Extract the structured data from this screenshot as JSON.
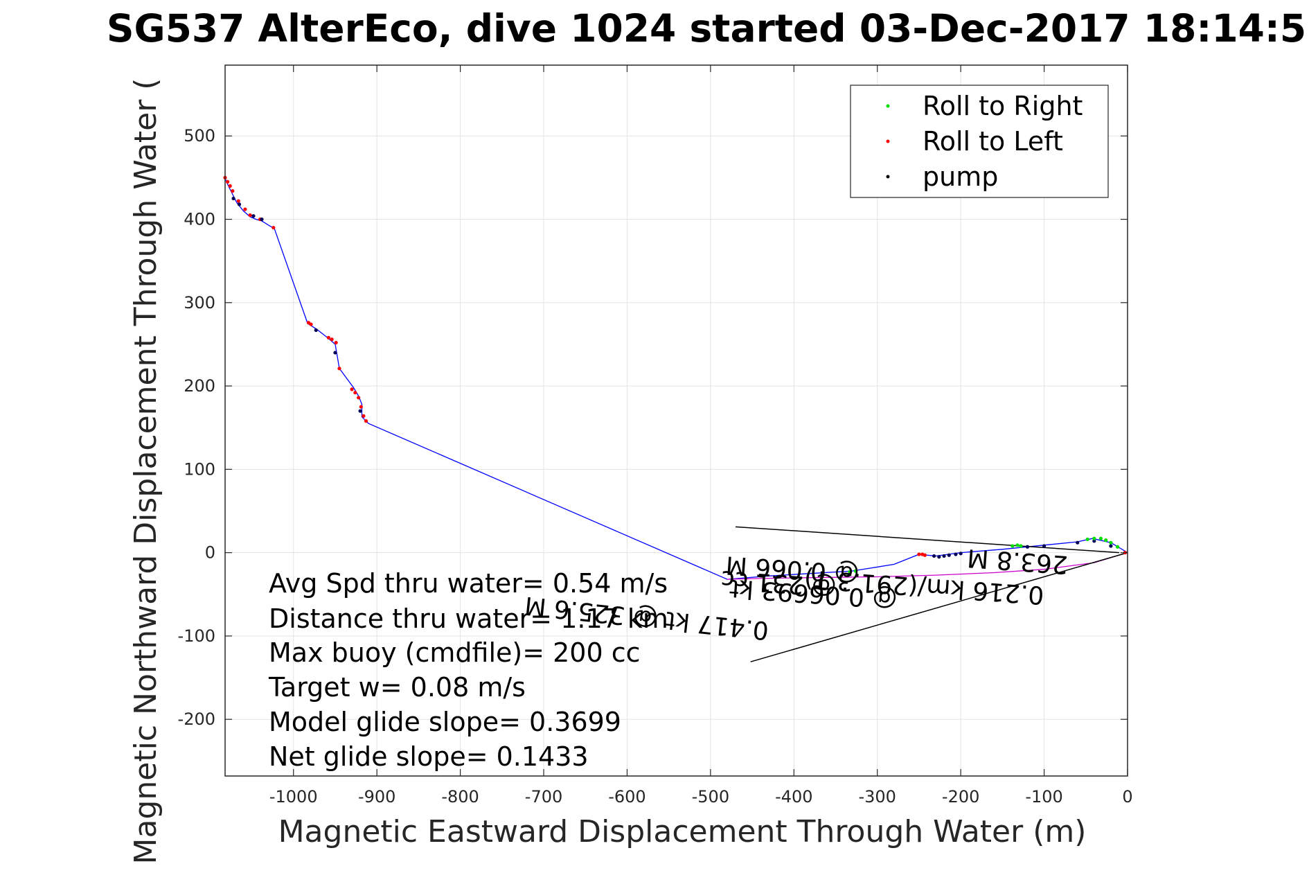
{
  "chart_data": {
    "type": "line",
    "title": "SG537 AlterEco, dive 1024 started 03-Dec-2017 18:14:5",
    "xlabel": "Magnetic Eastward Displacement Through Water (m)",
    "ylabel": "Magnetic Northward Displacement Through Water (",
    "xlim": [
      -1082,
      0
    ],
    "ylim": [
      -268,
      585
    ],
    "grid": true,
    "legend_position": "top-right",
    "xticks": [
      -1000,
      -900,
      -800,
      -700,
      -600,
      -500,
      -400,
      -300,
      -200,
      -100,
      0
    ],
    "yticks": [
      -200,
      -100,
      0,
      100,
      200,
      300,
      400,
      500
    ],
    "tick_labels_x": [
      "-1000",
      "-900",
      "-800",
      "-700",
      "-600",
      "-500",
      "-400",
      "-300",
      "-200",
      "-100",
      "0"
    ],
    "tick_labels_y": [
      "-200",
      "-100",
      "0",
      "100",
      "200",
      "300",
      "400",
      "500"
    ],
    "legend": [
      {
        "label": "Roll to Right",
        "color": "#00dd00"
      },
      {
        "label": "Roll to Left",
        "color": "#ff0000"
      },
      {
        "label": "pump",
        "color": "#000000"
      }
    ],
    "series": [
      {
        "color": "#0000ff",
        "x": [
          -1082,
          -1078,
          -1074,
          -1068,
          -1060,
          -1052,
          -1045,
          -1038,
          -1030,
          -1023,
          -983,
          -972,
          -958,
          -950,
          -945,
          -928,
          -922,
          -918,
          -918,
          -915,
          -910,
          -480,
          -430,
          -380,
          -330,
          -280,
          -250,
          -230,
          -200,
          -150,
          -100,
          -60,
          -42,
          -20,
          0
        ],
        "y": [
          449,
          440,
          432,
          420,
          410,
          403,
          400,
          398,
          393,
          389,
          275,
          268,
          257,
          250,
          221,
          198,
          188,
          178,
          163,
          160,
          155,
          -32,
          -28,
          -25,
          -22,
          -14,
          -2,
          -4,
          0,
          4,
          9,
          13,
          17,
          12,
          0
        ]
      },
      {
        "color": "#cc00cc",
        "x": [
          0,
          -40,
          -100,
          -160,
          -230,
          -300,
          -380,
          -440,
          -480
        ],
        "y": [
          0,
          -12,
          -20,
          -24,
          -27,
          -29,
          -30,
          -31,
          -32
        ]
      }
    ],
    "points": {
      "roll_right": {
        "x": [
          -333,
          -326,
          -138,
          -132,
          -128,
          -48,
          -40,
          -32,
          -26,
          -20,
          -12
        ],
        "y": [
          -23,
          -22,
          8,
          9,
          8,
          16,
          17,
          17,
          15,
          12,
          7
        ]
      },
      "roll_left": {
        "x": [
          -1082,
          -1079,
          -1076,
          -1073,
          -1066,
          -1058,
          -1052,
          -1040,
          -1024,
          -982,
          -979,
          -958,
          -954,
          -949,
          -945,
          -930,
          -926,
          -922,
          -919,
          -916,
          -913,
          -250,
          -246,
          -243,
          -3
        ],
        "y": [
          450,
          445,
          440,
          434,
          422,
          412,
          405,
          400,
          390,
          276,
          274,
          258,
          256,
          252,
          221,
          196,
          192,
          186,
          175,
          164,
          158,
          -2,
          -2,
          -3,
          0
        ]
      },
      "pump": {
        "x": [
          -1072,
          -1065,
          -1048,
          -1038,
          -973,
          -950,
          -920,
          -232,
          -226,
          -220,
          -214,
          -206,
          -200,
          -120,
          -100,
          -60,
          -40,
          -20
        ],
        "y": [
          425,
          418,
          404,
          400,
          267,
          240,
          170,
          -4,
          -5,
          -4,
          -3,
          -2,
          -1,
          7,
          8,
          12,
          14,
          8
        ]
      }
    },
    "lines": [
      {
        "x": [
          -470,
          -10
        ],
        "y": [
          31,
          0
        ],
        "color": "#000000"
      },
      {
        "x": [
          -452,
          0
        ],
        "y": [
          -131,
          0
        ],
        "color": "#000000"
      }
    ],
    "annotations": {
      "stats": [
        "Avg Spd thru water=  0.54 m/s",
        "Distance thru water= 1.17 km",
        "Max buoy (cmdfile)= 200 cc",
        "Target w= 0.08 m/s",
        "Model glide slope= 0.3699",
        "Net glide slope= 0.1433"
      ],
      "flipped": [
        "0.216 km/(291.3 T)",
        "263.8 M",
        "@ 0.06693 kt",
        "0.417 kt @ 325.6 M",
        "@ 0.066 M",
        "@ 231 cc"
      ]
    }
  }
}
